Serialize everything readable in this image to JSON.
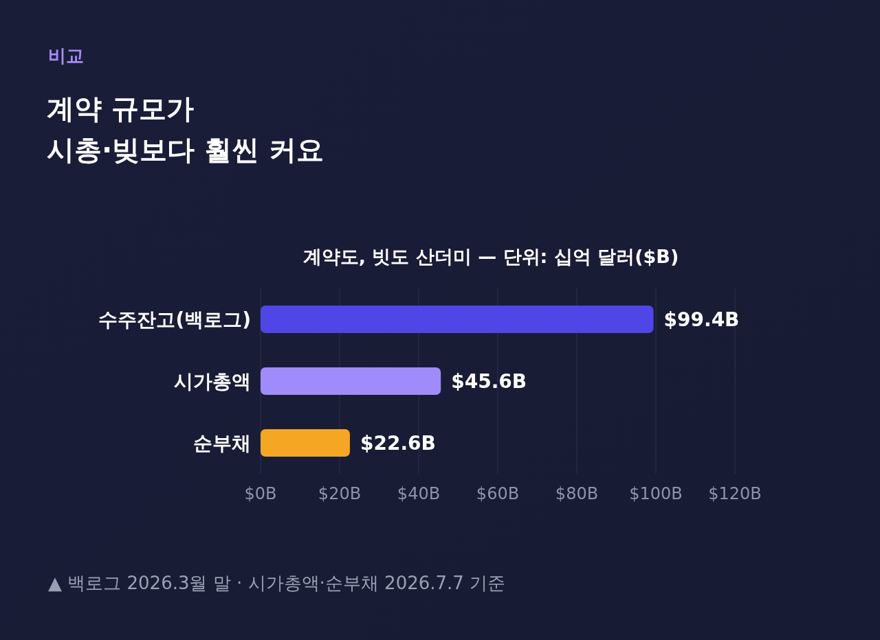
{
  "chart_data": {
    "type": "bar",
    "orientation": "horizontal",
    "title": "계약 규모가\n시총·빚보다 훨씬 커요",
    "subtitle": "계약도, 빗도 산더미 — 단위: 십억 달러($B)",
    "annotations": [
      "비교",
      "▲ 백로그 2026.3월 말 · 시가총액·순부채 2026.7.7 기준"
    ],
    "categories": [
      "수주잔고(백로그)",
      "시가총액",
      "순부채"
    ],
    "values": [
      99.4,
      45.6,
      22.6
    ],
    "colors": [
      "#4f46e5",
      "#a08bfa",
      "#f5a623"
    ],
    "value_labels": [
      "$99.4B",
      "$45.6B",
      "$22.6B"
    ],
    "xlim": [
      0,
      120
    ],
    "xticks": [
      {
        "value": 0,
        "label": "$0B"
      },
      {
        "value": 20,
        "label": "$20B"
      },
      {
        "value": 40,
        "label": "$40B"
      },
      {
        "value": 60,
        "label": "$60B"
      },
      {
        "value": 80,
        "label": "$80B"
      },
      {
        "value": 100,
        "label": "$100B"
      },
      {
        "value": 120,
        "label": "$120B"
      }
    ],
    "grid": "x"
  }
}
